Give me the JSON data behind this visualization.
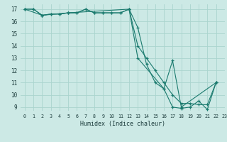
{
  "xlabel": "Humidex (Indice chaleur)",
  "xlim": [
    -0.5,
    23
  ],
  "ylim": [
    8.7,
    17.4
  ],
  "yticks": [
    9,
    10,
    11,
    12,
    13,
    14,
    15,
    16,
    17
  ],
  "xticks": [
    0,
    1,
    2,
    3,
    4,
    5,
    6,
    7,
    8,
    9,
    10,
    11,
    12,
    13,
    14,
    15,
    16,
    17,
    18,
    19,
    20,
    21,
    22,
    23
  ],
  "bg_color": "#cce9e5",
  "grid_color": "#aad4ce",
  "line_color": "#1a7a6e",
  "line1_x": [
    0,
    1,
    2,
    3,
    4,
    5,
    6,
    7,
    8,
    9,
    10,
    11,
    12,
    13,
    14,
    15,
    16,
    17,
    18,
    19,
    20,
    21,
    22
  ],
  "line1_y": [
    17,
    17,
    16.5,
    16.6,
    16.6,
    16.7,
    16.7,
    17.0,
    16.7,
    16.7,
    16.7,
    16.7,
    17.0,
    15.5,
    12.5,
    11.0,
    10.5,
    9.0,
    8.9,
    9.0,
    9.5,
    8.8,
    11.0
  ],
  "line2_x": [
    0,
    1,
    2,
    3,
    4,
    5,
    6,
    7,
    8,
    9,
    10,
    11,
    12,
    13,
    14,
    15,
    16,
    17,
    18,
    19,
    20,
    21,
    22
  ],
  "line2_y": [
    17,
    17,
    16.5,
    16.6,
    16.6,
    16.7,
    16.7,
    17.0,
    16.7,
    16.7,
    16.7,
    16.7,
    17.0,
    14.0,
    13.0,
    12.0,
    11.0,
    10.0,
    9.3,
    9.3,
    9.2,
    9.2,
    11.0
  ],
  "line3_x": [
    0,
    2,
    5,
    12,
    13,
    16,
    17,
    18,
    22
  ],
  "line3_y": [
    17,
    16.5,
    16.7,
    17.0,
    13.0,
    10.5,
    12.8,
    9.0,
    11.0
  ]
}
